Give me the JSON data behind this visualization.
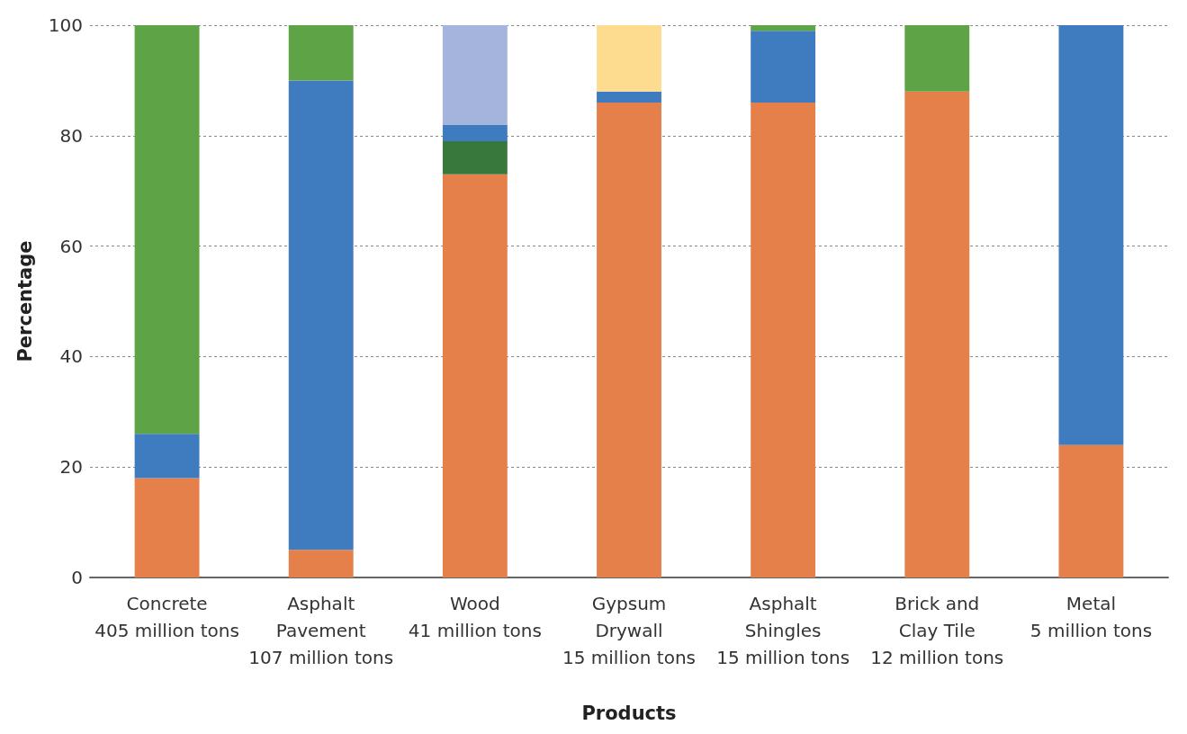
{
  "chart_data": {
    "type": "bar",
    "stacked": true,
    "xlabel": "Products",
    "ylabel": "Percentage",
    "categories": [
      "Concrete\n405 million tons",
      "Asphalt\nPavement\n107 million tons",
      "Wood\n41 million tons",
      "Gypsum\nDrywall\n15 million tons",
      "Asphalt\nShingles\n15 million tons",
      "Brick and\nClay Tile\n12 million tons",
      "Metal\n5 million tons"
    ],
    "series": [
      {
        "color": "#e5804b",
        "values": [
          18,
          5,
          73,
          86,
          86,
          88,
          24
        ]
      },
      {
        "color": "#38783c",
        "values": [
          null,
          null,
          6,
          null,
          null,
          null,
          null
        ]
      },
      {
        "color": "#3e7cbf",
        "values": [
          8,
          85,
          3,
          2,
          13,
          null,
          76
        ]
      },
      {
        "color": "#a5b4dc",
        "values": [
          null,
          null,
          18,
          null,
          null,
          null,
          null
        ]
      },
      {
        "color": "#fddc90",
        "values": [
          null,
          null,
          null,
          12,
          null,
          null,
          null
        ]
      },
      {
        "color": "#5ea345",
        "values": [
          74,
          10,
          null,
          null,
          1,
          12,
          null
        ]
      }
    ],
    "ylim": [
      0,
      100
    ],
    "yticks": [
      0,
      20,
      40,
      60,
      80,
      100
    ],
    "grid": "y"
  }
}
